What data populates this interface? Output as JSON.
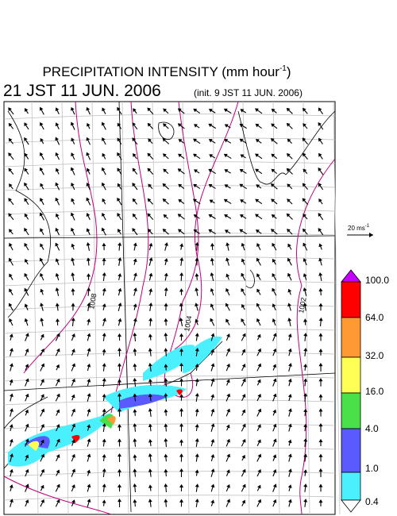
{
  "header": {
    "title": "PRECIPITATION INTENSITY (mm hour",
    "title_sup": "-1",
    "title_end": ")",
    "valid_time": "21 JST 11 JUN. 2006",
    "init_time": "(init. 9 JST 11 JUN. 2006)"
  },
  "wind_scale": {
    "label": "20 ms",
    "label_sup": "-1"
  },
  "contour_labels": [
    "1008",
    "1004",
    "1002"
  ],
  "colorbar": {
    "labels": [
      "0.4",
      "1.0",
      "4.0",
      "16.0",
      "32.0",
      "64.0",
      "100.0"
    ]
  }
}
